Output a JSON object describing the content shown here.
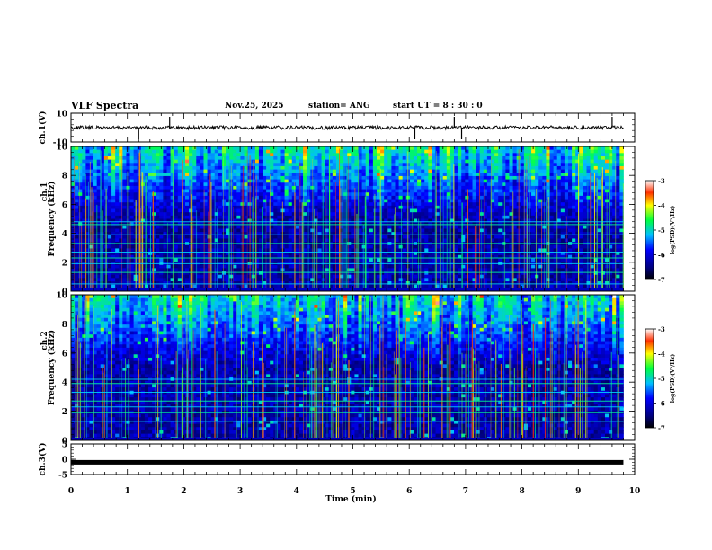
{
  "header": {
    "title": "VLF Spectra",
    "date": "Nov.25, 2025",
    "station": "station= ANG",
    "start": "start  UT =   8  : 30 : 0"
  },
  "chart_data": [
    {
      "id": "ch1_waveform",
      "type": "line",
      "ylabel": "ch.1(V)",
      "ylim": [
        -10,
        10
      ],
      "yticks": [
        "10",
        "-10"
      ],
      "baseline": 0,
      "spikes_min": [
        1.2,
        1.75,
        6.1,
        6.8,
        6.93,
        9.6
      ]
    },
    {
      "id": "ch1_spectrogram",
      "type": "heatmap",
      "ylabel_top": "ch.1",
      "ylabel": "Frequency (kHz)",
      "ylim": [
        0,
        10
      ],
      "yticks": [
        "0",
        "2",
        "4",
        "6",
        "8",
        "10"
      ],
      "colorbar": {
        "label": "log(PSD)(V²/Hz)",
        "range": [
          -7,
          -3
        ],
        "ticks": [
          "-3",
          "-4",
          "-5",
          "-6",
          "-7"
        ]
      },
      "tone_lines_khz": [
        0.5,
        1.3,
        1.9,
        2.3,
        2.7,
        3.3,
        3.9,
        4.6,
        4.8
      ]
    },
    {
      "id": "ch2_spectrogram",
      "type": "heatmap",
      "ylabel_top": "ch.2",
      "ylabel": "Frequency (kHz)",
      "ylim": [
        0,
        10
      ],
      "yticks": [
        "0",
        "2",
        "4",
        "6",
        "8",
        "10"
      ],
      "colorbar": {
        "label": "log(PSD)(V²/Hz)",
        "range": [
          -7,
          -3
        ],
        "ticks": [
          "-3",
          "-4",
          "-5",
          "-6",
          "-7"
        ]
      },
      "tone_lines_khz": [
        1.3,
        1.9,
        2.3,
        2.7,
        3.3,
        3.9,
        4.2
      ]
    },
    {
      "id": "ch3_waveform",
      "type": "line",
      "ylabel": "ch.3(V)",
      "ylim": [
        -5,
        5
      ],
      "yticks": [
        "5",
        "0",
        "-5"
      ],
      "baseline": -1
    },
    {
      "id": "time_axis",
      "xlabel": "Time (min)",
      "xlim": [
        0,
        10
      ],
      "xticks": [
        "0",
        "1",
        "2",
        "3",
        "4",
        "5",
        "6",
        "7",
        "8",
        "9",
        "10"
      ],
      "data_end_min": 9.8
    }
  ]
}
